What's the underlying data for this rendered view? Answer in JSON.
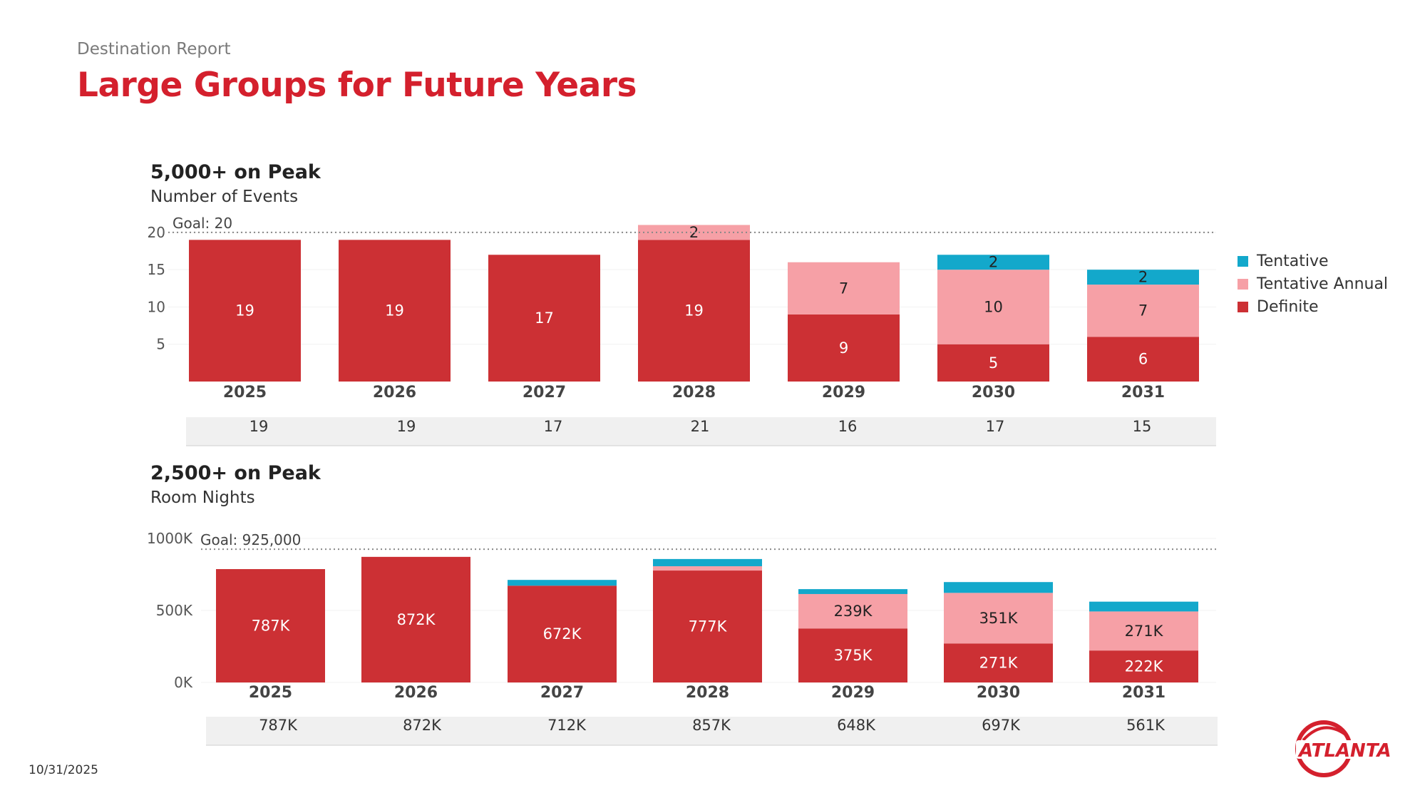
{
  "header": {
    "eyebrow": "Destination Report",
    "title": "Large Groups for Future Years",
    "date": "10/31/2025"
  },
  "colors": {
    "definite": "#cc3034",
    "tentative_annual": "#f6a0a6",
    "tentative": "#13a8cb",
    "title_red": "#d4202d",
    "total_row_bg": "#f0f0f0"
  },
  "legend": [
    {
      "label": "Tentative",
      "color": "#13a8cb"
    },
    {
      "label": "Tentative Annual",
      "color": "#f6a0a6"
    },
    {
      "label": "Definite",
      "color": "#cc3034"
    }
  ],
  "logo": {
    "text": "ATLANTA"
  },
  "chart_data": [
    {
      "type": "bar",
      "stacked": true,
      "title": "5,000+ on Peak",
      "subtitle": "Number of Events",
      "categories": [
        "2025",
        "2026",
        "2027",
        "2028",
        "2029",
        "2030",
        "2031"
      ],
      "series": [
        {
          "name": "Definite",
          "values": [
            19,
            19,
            17,
            19,
            9,
            5,
            6
          ]
        },
        {
          "name": "Tentative Annual",
          "values": [
            0,
            0,
            0,
            2,
            7,
            10,
            7
          ]
        },
        {
          "name": "Tentative",
          "values": [
            0,
            0,
            0,
            0,
            0,
            2,
            2
          ]
        }
      ],
      "segment_labels": [
        [
          "19",
          "19",
          "17",
          "19",
          "9",
          "5",
          "6"
        ],
        [
          "",
          "",
          "",
          "2",
          "7",
          "10",
          "7"
        ],
        [
          "",
          "",
          "",
          "",
          "",
          "2",
          "2"
        ]
      ],
      "totals": [
        "19",
        "19",
        "17",
        "21",
        "16",
        "17",
        "15"
      ],
      "goal": {
        "value": 20,
        "label": "Goal: 20"
      },
      "y_ticks": [
        5,
        10,
        15,
        20
      ],
      "y_tick_labels": [
        "5",
        "10",
        "15",
        "20"
      ],
      "ylim": [
        0,
        22
      ]
    },
    {
      "type": "bar",
      "stacked": true,
      "title": "2,500+ on Peak",
      "subtitle": "Room Nights",
      "categories": [
        "2025",
        "2026",
        "2027",
        "2028",
        "2029",
        "2030",
        "2031"
      ],
      "series": [
        {
          "name": "Definite",
          "values": [
            787000,
            872000,
            672000,
            777000,
            375000,
            271000,
            222000
          ]
        },
        {
          "name": "Tentative Annual",
          "values": [
            0,
            0,
            0,
            30000,
            239000,
            351000,
            271000
          ]
        },
        {
          "name": "Tentative",
          "values": [
            0,
            0,
            40000,
            50000,
            34000,
            75000,
            68000
          ]
        }
      ],
      "segment_labels": [
        [
          "787K",
          "872K",
          "672K",
          "777K",
          "375K",
          "271K",
          "222K"
        ],
        [
          "",
          "",
          "",
          "",
          "239K",
          "351K",
          "271K"
        ],
        [
          "",
          "",
          "",
          "",
          "",
          "",
          ""
        ]
      ],
      "totals": [
        "787K",
        "872K",
        "712K",
        "857K",
        "648K",
        "697K",
        "561K"
      ],
      "goal": {
        "value": 925000,
        "label": "Goal: 925,000"
      },
      "y_ticks": [
        0,
        500000,
        1000000
      ],
      "y_tick_labels": [
        "0K",
        "500K",
        "1000K"
      ],
      "ylim": [
        0,
        1000000
      ]
    }
  ]
}
